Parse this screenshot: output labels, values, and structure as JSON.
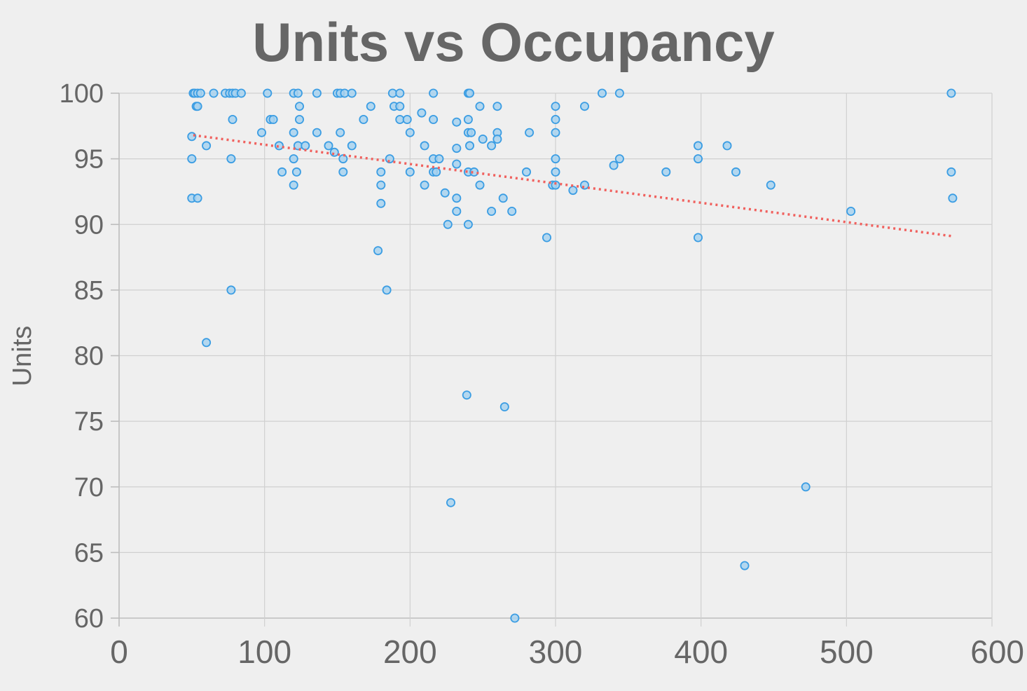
{
  "chart_data": {
    "type": "scatter",
    "title": "Units vs Occupancy",
    "ylabel": "Units",
    "xlabel": "",
    "xlim": [
      0,
      600
    ],
    "ylim": [
      60,
      100
    ],
    "x_ticks": [
      "0",
      "100",
      "200",
      "300",
      "400",
      "500",
      "600"
    ],
    "y_ticks": [
      "60",
      "65",
      "70",
      "75",
      "80",
      "85",
      "90",
      "95",
      "100"
    ],
    "grid": true,
    "colors": {
      "point_fill": "#a8d2ef",
      "point_stroke": "#3b9de3",
      "trendline": "#f0615e"
    },
    "trendline": {
      "x": [
        51,
        573
      ],
      "y": [
        96.8,
        89.1
      ],
      "style": "dotted"
    },
    "points": [
      [
        51,
        100
      ],
      [
        52,
        100
      ],
      [
        54,
        100
      ],
      [
        56,
        100
      ],
      [
        65,
        100
      ],
      [
        73,
        100
      ],
      [
        76,
        100
      ],
      [
        78,
        100
      ],
      [
        80,
        100
      ],
      [
        84,
        100
      ],
      [
        102,
        100
      ],
      [
        120,
        100
      ],
      [
        123,
        100
      ],
      [
        136,
        100
      ],
      [
        150,
        100
      ],
      [
        152,
        100
      ],
      [
        155,
        100
      ],
      [
        160,
        100
      ],
      [
        188,
        100
      ],
      [
        193,
        100
      ],
      [
        216,
        100
      ],
      [
        240,
        100
      ],
      [
        241,
        100
      ],
      [
        332,
        100
      ],
      [
        344,
        100
      ],
      [
        572,
        100
      ],
      [
        53,
        99
      ],
      [
        54,
        99
      ],
      [
        124,
        99
      ],
      [
        173,
        99
      ],
      [
        189,
        99
      ],
      [
        193,
        99
      ],
      [
        248,
        99
      ],
      [
        260,
        99
      ],
      [
        300,
        99
      ],
      [
        320,
        99
      ],
      [
        78,
        98
      ],
      [
        104,
        98
      ],
      [
        106,
        98
      ],
      [
        124,
        98
      ],
      [
        168,
        98
      ],
      [
        193,
        98
      ],
      [
        198,
        98
      ],
      [
        216,
        98
      ],
      [
        240,
        98
      ],
      [
        300,
        98
      ],
      [
        208,
        98.5
      ],
      [
        232,
        97.8
      ],
      [
        98,
        97
      ],
      [
        120,
        97
      ],
      [
        136,
        97
      ],
      [
        152,
        97
      ],
      [
        200,
        97
      ],
      [
        240,
        97
      ],
      [
        242,
        97
      ],
      [
        260,
        97
      ],
      [
        282,
        97
      ],
      [
        300,
        97
      ],
      [
        50,
        96.7
      ],
      [
        250,
        96.5
      ],
      [
        260,
        96.5
      ],
      [
        60,
        96
      ],
      [
        110,
        96
      ],
      [
        123,
        96
      ],
      [
        128,
        96
      ],
      [
        144,
        96
      ],
      [
        160,
        96
      ],
      [
        210,
        96
      ],
      [
        241,
        96
      ],
      [
        256,
        96
      ],
      [
        398,
        96
      ],
      [
        418,
        96
      ],
      [
        148,
        95.5
      ],
      [
        232,
        95.8
      ],
      [
        50,
        95
      ],
      [
        77,
        95
      ],
      [
        120,
        95
      ],
      [
        154,
        95
      ],
      [
        186,
        95
      ],
      [
        216,
        95
      ],
      [
        220,
        95
      ],
      [
        300,
        95
      ],
      [
        344,
        95
      ],
      [
        398,
        95
      ],
      [
        232,
        94.6
      ],
      [
        340,
        94.5
      ],
      [
        112,
        94
      ],
      [
        122,
        94
      ],
      [
        154,
        94
      ],
      [
        180,
        94
      ],
      [
        200,
        94
      ],
      [
        216,
        94
      ],
      [
        218,
        94
      ],
      [
        240,
        94
      ],
      [
        244,
        94
      ],
      [
        280,
        94
      ],
      [
        300,
        94
      ],
      [
        376,
        94
      ],
      [
        424,
        94
      ],
      [
        572,
        94
      ],
      [
        120,
        93
      ],
      [
        180,
        93
      ],
      [
        210,
        93
      ],
      [
        248,
        93
      ],
      [
        298,
        93
      ],
      [
        300,
        93
      ],
      [
        320,
        93
      ],
      [
        448,
        93
      ],
      [
        312,
        92.6
      ],
      [
        224,
        92.4
      ],
      [
        50,
        92
      ],
      [
        54,
        92
      ],
      [
        232,
        92
      ],
      [
        264,
        92
      ],
      [
        573,
        92
      ],
      [
        180,
        91.6
      ],
      [
        232,
        91
      ],
      [
        256,
        91
      ],
      [
        270,
        91
      ],
      [
        503,
        91
      ],
      [
        226,
        90
      ],
      [
        240,
        90
      ],
      [
        294,
        89
      ],
      [
        398,
        89
      ],
      [
        178,
        88
      ],
      [
        77,
        85
      ],
      [
        184,
        85
      ],
      [
        60,
        81
      ],
      [
        239,
        77
      ],
      [
        265,
        76.1
      ],
      [
        472,
        70
      ],
      [
        228,
        68.8
      ],
      [
        430,
        64
      ],
      [
        272,
        60
      ]
    ]
  }
}
